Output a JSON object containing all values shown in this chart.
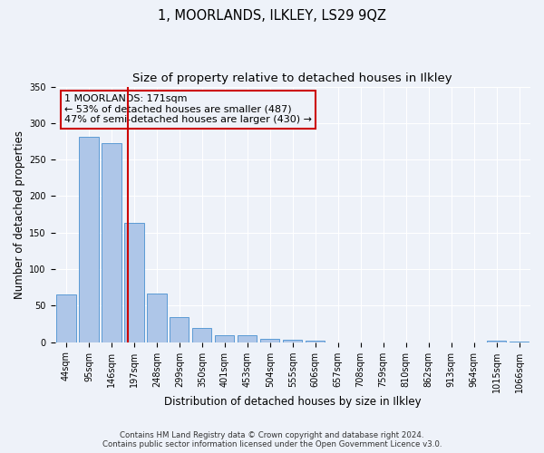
{
  "title": "1, MOORLANDS, ILKLEY, LS29 9QZ",
  "subtitle": "Size of property relative to detached houses in Ilkley",
  "xlabel": "Distribution of detached houses by size in Ilkley",
  "ylabel": "Number of detached properties",
  "footer_line1": "Contains HM Land Registry data © Crown copyright and database right 2024.",
  "footer_line2": "Contains public sector information licensed under the Open Government Licence v3.0.",
  "bar_labels": [
    "44sqm",
    "95sqm",
    "146sqm",
    "197sqm",
    "248sqm",
    "299sqm",
    "350sqm",
    "401sqm",
    "453sqm",
    "504sqm",
    "555sqm",
    "606sqm",
    "657sqm",
    "708sqm",
    "759sqm",
    "810sqm",
    "862sqm",
    "913sqm",
    "964sqm",
    "1015sqm",
    "1066sqm"
  ],
  "bar_values": [
    65,
    281,
    272,
    163,
    67,
    34,
    20,
    9,
    9,
    5,
    3,
    2,
    0,
    0,
    0,
    0,
    0,
    0,
    0,
    2,
    1
  ],
  "bar_color": "#aec6e8",
  "bar_edge_color": "#5b9bd5",
  "ylim": [
    0,
    350
  ],
  "yticks": [
    0,
    50,
    100,
    150,
    200,
    250,
    300,
    350
  ],
  "vline_x": 2.72,
  "vline_color": "#cc0000",
  "annotation_text": "1 MOORLANDS: 171sqm\n← 53% of detached houses are smaller (487)\n47% of semi-detached houses are larger (430) →",
  "annotation_box_edgecolor": "#cc0000",
  "background_color": "#eef2f9",
  "grid_color": "#ffffff",
  "title_fontsize": 10.5,
  "subtitle_fontsize": 9.5,
  "axis_label_fontsize": 8.5,
  "tick_fontsize": 7,
  "annotation_fontsize": 8,
  "footer_fontsize": 6.2
}
